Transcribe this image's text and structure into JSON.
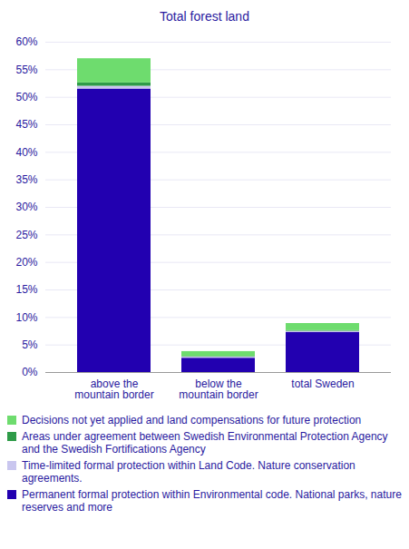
{
  "chart_data": {
    "type": "bar",
    "title": "Total forest land",
    "categories": [
      "above the mountain border",
      "below the mountain border",
      "total Sweden"
    ],
    "series": [
      {
        "name": "Permanent formal protection within Environmental code. National parks, nature reserves and more",
        "color": "#2200b0",
        "values": [
          51.5,
          2.6,
          7.3
        ]
      },
      {
        "name": "Time-limited formal protection within Land Code. Nature conservation agreements.",
        "color": "#c9c6ef",
        "values": [
          0.5,
          0.2,
          0.2
        ]
      },
      {
        "name": "Areas under agreement between Swedish Environmental Protection Agency and the Swedish Fortifications Agency",
        "color": "#2e9b48",
        "values": [
          0.6,
          0.1,
          0.1
        ]
      },
      {
        "name": "Decisions not yet applied and land compensations for future protection",
        "color": "#6edc6e",
        "values": [
          4.4,
          0.9,
          1.3
        ]
      }
    ],
    "ylim": [
      0,
      60
    ],
    "yticks": [
      {
        "value": 0,
        "label": "0%"
      },
      {
        "value": 5,
        "label": "5%"
      },
      {
        "value": 10,
        "label": "10%"
      },
      {
        "value": 15,
        "label": "15%"
      },
      {
        "value": 20,
        "label": "20%"
      },
      {
        "value": 25,
        "label": "25%"
      },
      {
        "value": 30,
        "label": "30%"
      },
      {
        "value": 35,
        "label": "35%"
      },
      {
        "value": 40,
        "label": "40%"
      },
      {
        "value": 45,
        "label": "45%"
      },
      {
        "value": 50,
        "label": "50%"
      },
      {
        "value": 55,
        "label": "55%"
      },
      {
        "value": 60,
        "label": "60%"
      }
    ],
    "grid": true,
    "stacked": true,
    "legend": "bottom"
  }
}
